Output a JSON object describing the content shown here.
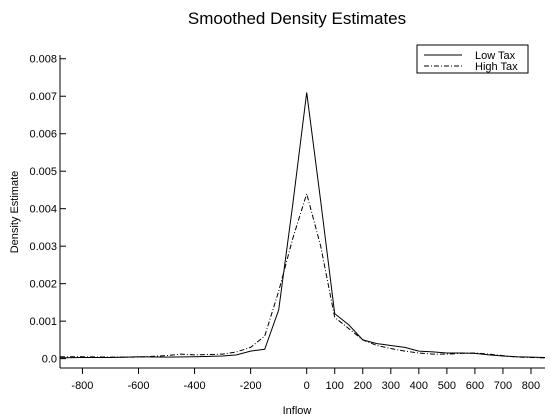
{
  "chart_data": {
    "type": "line",
    "title": "Smoothed Density Estimates",
    "xlabel": "Inflow",
    "ylabel": "Density Estimate",
    "xlim": [
      -880,
      850
    ],
    "ylim": [
      -0.00025,
      0.0081
    ],
    "x_ticks": [
      -800,
      -600,
      -400,
      -200,
      0,
      100,
      200,
      300,
      400,
      500,
      600,
      700,
      800
    ],
    "x_tick_labels": [
      "-800",
      "-600",
      "-400",
      "-200",
      "0",
      "100",
      "200",
      "300",
      "400",
      "500",
      "600",
      "700",
      "800"
    ],
    "y_ticks": [
      0.0,
      0.001,
      0.002,
      0.003,
      0.004,
      0.005,
      0.006,
      0.007,
      0.008
    ],
    "y_tick_labels": [
      "0.0",
      "0.001",
      "0.002",
      "0.003",
      "0.004",
      "0.005",
      "0.006",
      "0.007",
      "0.008"
    ],
    "grid": false,
    "legend_position": "top-right",
    "series": [
      {
        "name": "Low Tax",
        "style": "solid",
        "color": "#000000",
        "x": [
          -880,
          -800,
          -700,
          -600,
          -500,
          -400,
          -300,
          -250,
          -200,
          -150,
          -100,
          -50,
          0,
          50,
          100,
          150,
          200,
          250,
          300,
          350,
          400,
          450,
          500,
          550,
          600,
          650,
          700,
          750,
          800,
          850
        ],
        "y": [
          2e-05,
          3e-05,
          3e-05,
          5e-05,
          4e-05,
          5e-05,
          7e-05,
          0.0001,
          0.0002,
          0.00025,
          0.0013,
          0.0041,
          0.0071,
          0.0042,
          0.0012,
          0.0009,
          0.0005,
          0.0004,
          0.00035,
          0.0003,
          0.0002,
          0.00018,
          0.00015,
          0.00015,
          0.00014,
          0.0001,
          7e-05,
          5e-05,
          4e-05,
          3e-05
        ]
      },
      {
        "name": "High Tax",
        "style": "dash-dot",
        "color": "#000000",
        "x": [
          -880,
          -800,
          -700,
          -600,
          -500,
          -450,
          -400,
          -300,
          -250,
          -200,
          -150,
          -100,
          -50,
          0,
          50,
          100,
          150,
          200,
          250,
          300,
          350,
          400,
          450,
          500,
          550,
          600,
          650,
          700,
          750,
          800,
          850
        ],
        "y": [
          5e-05,
          5e-05,
          4e-05,
          4e-05,
          8e-05,
          0.00012,
          0.0001,
          0.00012,
          0.00018,
          0.0003,
          0.0006,
          0.0018,
          0.0032,
          0.0044,
          0.003,
          0.0011,
          0.0008,
          0.0005,
          0.00035,
          0.00027,
          0.0002,
          0.00015,
          0.00012,
          0.00012,
          0.00014,
          0.00015,
          0.00012,
          8e-05,
          4e-05,
          3e-05,
          2e-05
        ]
      }
    ]
  }
}
